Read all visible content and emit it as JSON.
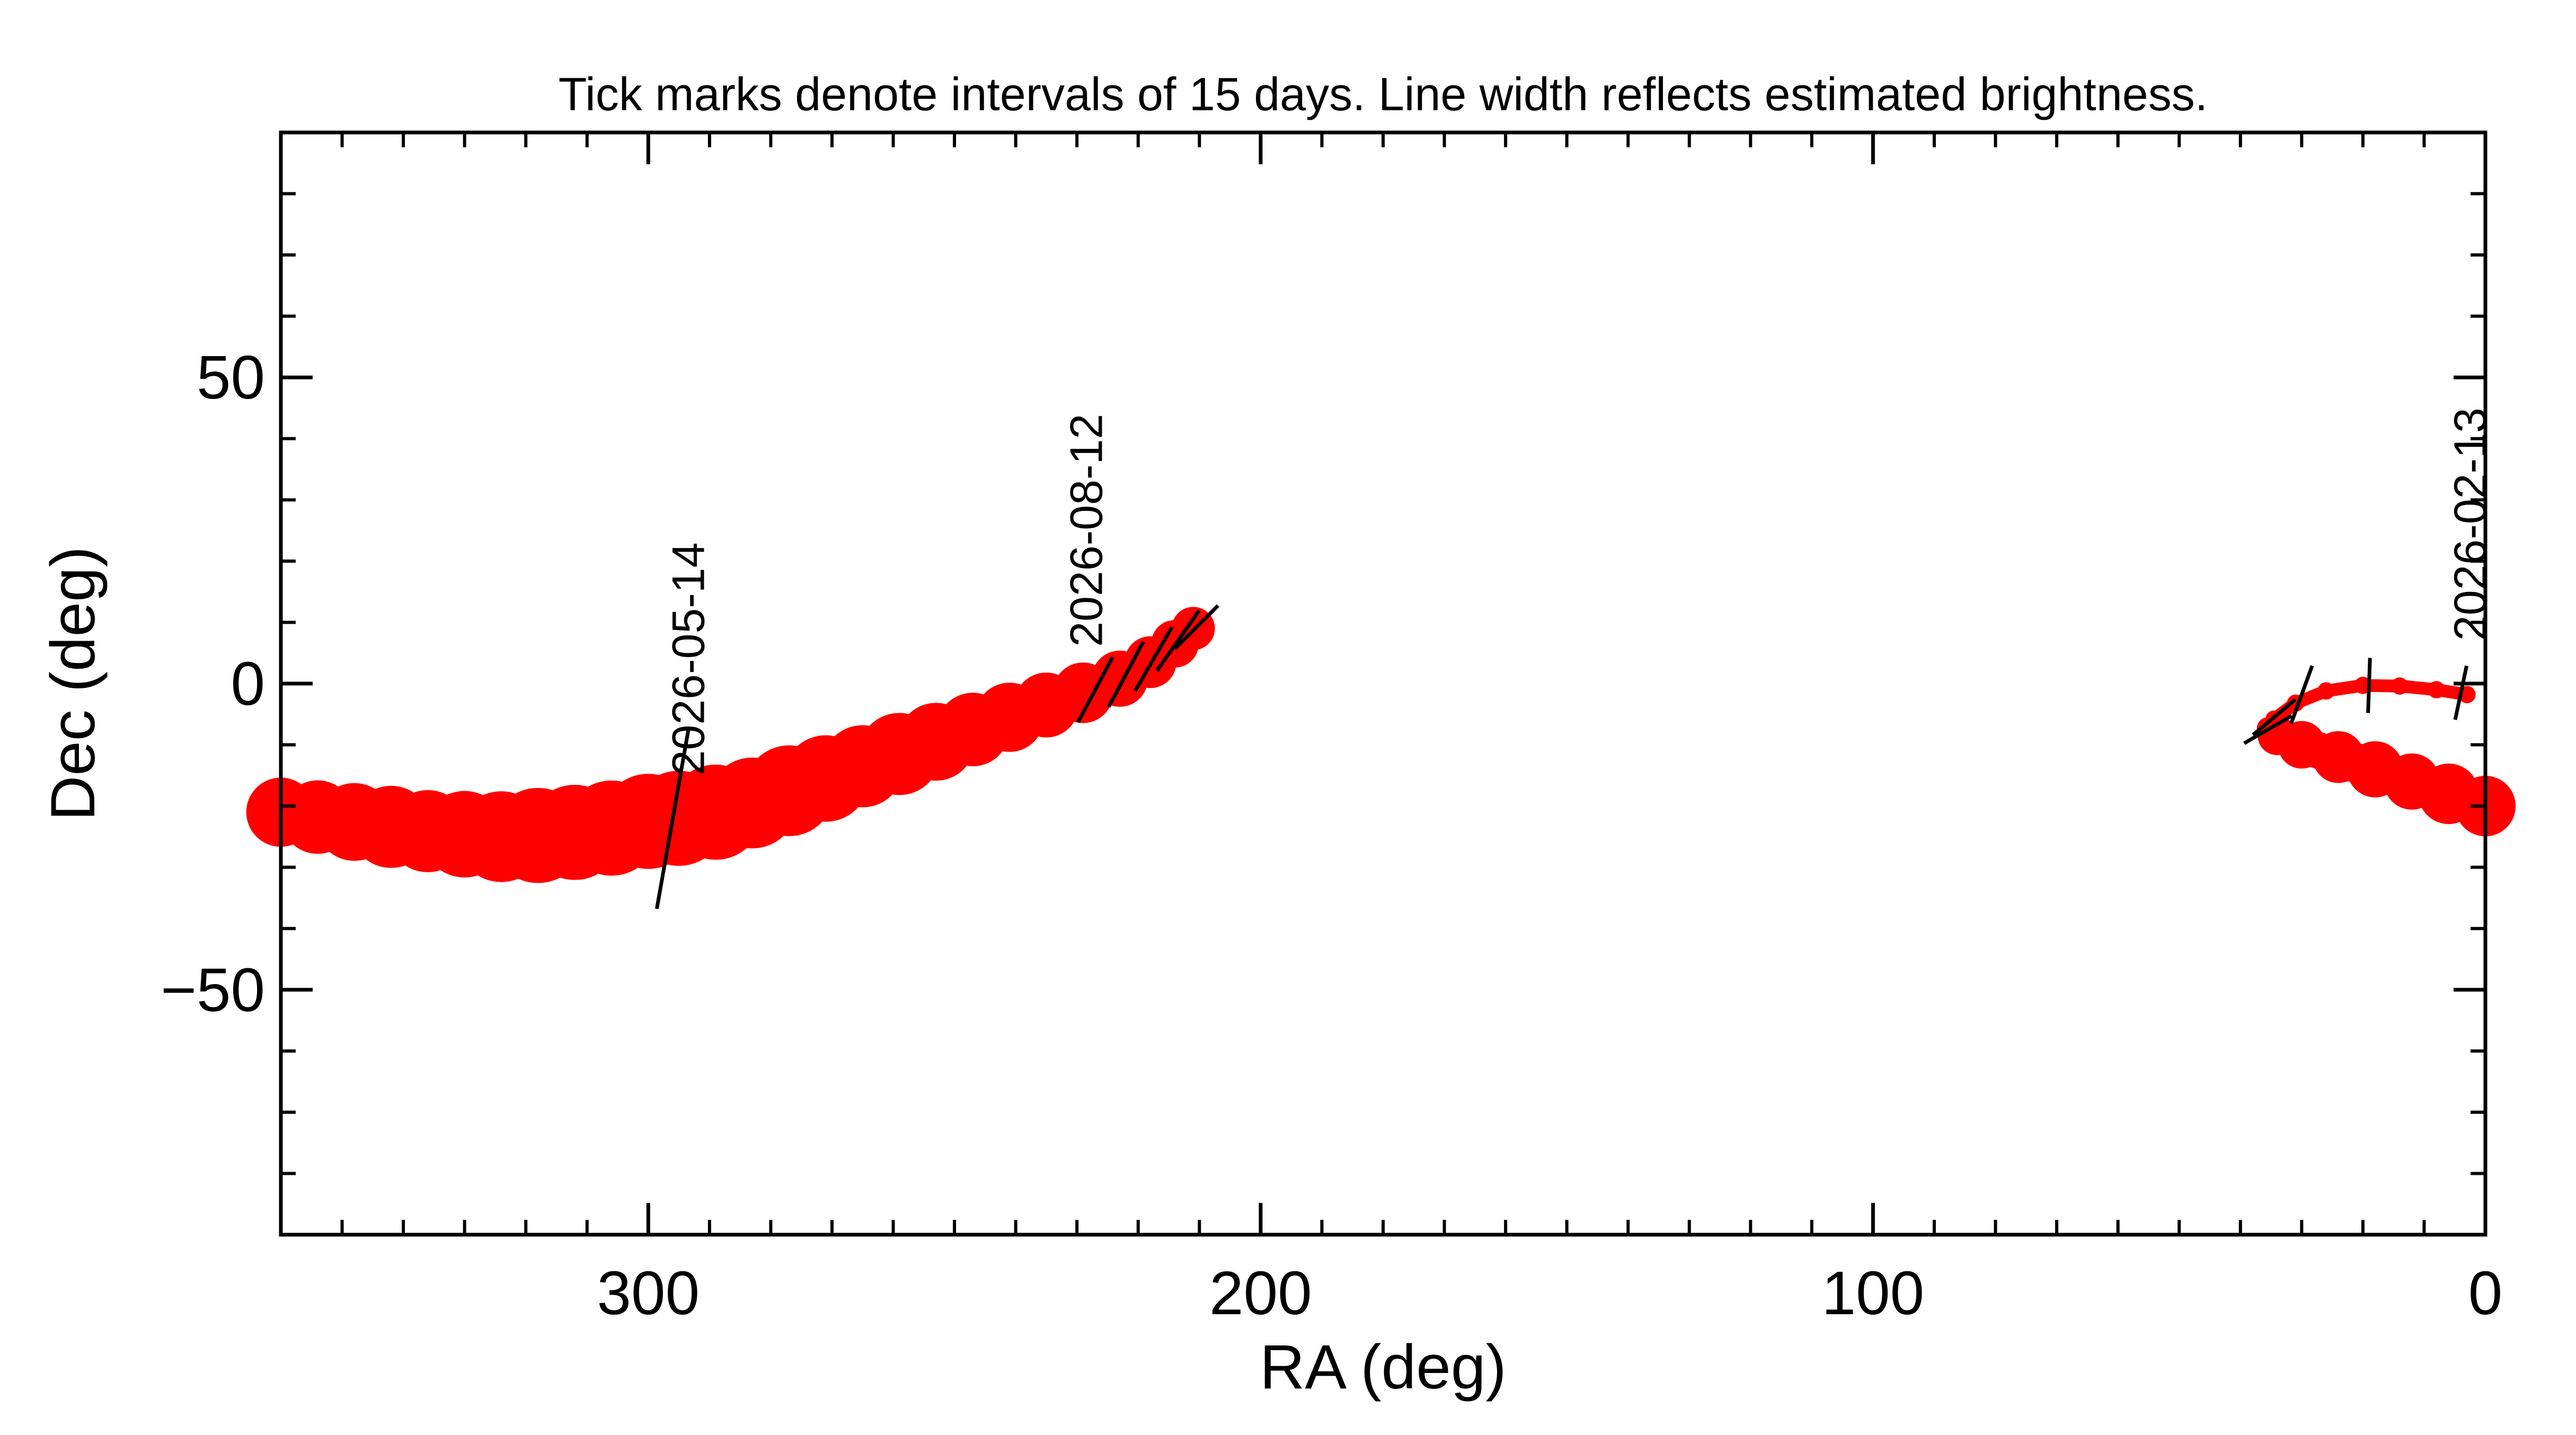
{
  "chart_data": {
    "type": "line",
    "title": "Tick marks denote intervals of 15 days.  Line width reflects estimated brightness.",
    "xlabel": "RA (deg)",
    "ylabel": "Dec (deg)",
    "xlim": [
      360,
      0
    ],
    "ylim": [
      -90,
      90
    ],
    "x_ticks": [
      300,
      200,
      100,
      0
    ],
    "y_ticks": [
      50,
      0,
      -50
    ],
    "x_minor_step": 10,
    "y_minor_step": 10,
    "grid": false,
    "line_color": "#ff0000",
    "tick_mark_color": "#000000",
    "series": [
      {
        "points": [
          {
            "ra": 0.0,
            "dec": -20.0,
            "w": 14
          },
          {
            "ra": 6.0,
            "dec": -18.0,
            "w": 14
          },
          {
            "ra": 12.0,
            "dec": -16.0,
            "w": 13
          },
          {
            "ra": 18.0,
            "dec": -14.0,
            "w": 13
          },
          {
            "ra": 24.0,
            "dec": -12.0,
            "w": 12
          },
          {
            "ra": 30.0,
            "dec": -10.0,
            "w": 11
          },
          {
            "ra": 34.0,
            "dec": -8.5,
            "w": 9
          },
          {
            "ra": 35.5,
            "dec": -7.3,
            "w": 5
          },
          {
            "ra": 34.5,
            "dec": -5.8,
            "w": 4
          },
          {
            "ra": 31.0,
            "dec": -3.2,
            "w": 4
          },
          {
            "ra": 26.0,
            "dec": -1.2,
            "w": 4
          },
          {
            "ra": 20.0,
            "dec": -0.3,
            "w": 4
          },
          {
            "ra": 14.0,
            "dec": -0.4,
            "w": 4
          },
          {
            "ra": 8.0,
            "dec": -1.0,
            "w": 4
          },
          {
            "ra": 3.0,
            "dec": -1.8,
            "w": 4
          }
        ]
      },
      {
        "points": [
          {
            "ra": 360.0,
            "dec": -21.0,
            "w": 16
          },
          {
            "ra": 354.0,
            "dec": -21.8,
            "w": 17
          },
          {
            "ra": 348.0,
            "dec": -22.6,
            "w": 18
          },
          {
            "ra": 342.0,
            "dec": -23.4,
            "w": 19
          },
          {
            "ra": 336.0,
            "dec": -24.1,
            "w": 19
          },
          {
            "ra": 330.0,
            "dec": -24.6,
            "w": 20
          },
          {
            "ra": 324.0,
            "dec": -25.0,
            "w": 21
          },
          {
            "ra": 318.0,
            "dec": -24.8,
            "w": 22
          },
          {
            "ra": 312.0,
            "dec": -24.3,
            "w": 22
          },
          {
            "ra": 306.0,
            "dec": -23.6,
            "w": 22
          },
          {
            "ra": 300.0,
            "dec": -22.5,
            "w": 22
          },
          {
            "ra": 295.0,
            "dec": -22.0,
            "w": 22
          },
          {
            "ra": 289.0,
            "dec": -21.0,
            "w": 22
          },
          {
            "ra": 283.0,
            "dec": -19.5,
            "w": 21
          },
          {
            "ra": 277.0,
            "dec": -17.5,
            "w": 21
          },
          {
            "ra": 271.0,
            "dec": -15.5,
            "w": 20
          },
          {
            "ra": 265.0,
            "dec": -13.5,
            "w": 19
          },
          {
            "ra": 259.0,
            "dec": -11.5,
            "w": 19
          },
          {
            "ra": 253.0,
            "dec": -9.5,
            "w": 18
          },
          {
            "ra": 247.0,
            "dec": -7.5,
            "w": 17
          },
          {
            "ra": 241.0,
            "dec": -5.5,
            "w": 16
          },
          {
            "ra": 235.0,
            "dec": -3.5,
            "w": 15
          },
          {
            "ra": 229.0,
            "dec": -1.5,
            "w": 14
          },
          {
            "ra": 223.0,
            "dec": 0.8,
            "w": 13
          },
          {
            "ra": 218.0,
            "dec": 3.5,
            "w": 12
          },
          {
            "ra": 214.0,
            "dec": 6.5,
            "w": 11
          },
          {
            "ra": 211.0,
            "dec": 9.0,
            "w": 10
          }
        ]
      }
    ],
    "interval_ticks": [
      {
        "ra": 4.0,
        "dec": -1.5,
        "angle": 78,
        "len": 4.5
      },
      {
        "ra": 19.0,
        "dec": -0.3,
        "angle": 88,
        "len": 4.5
      },
      {
        "ra": 30.0,
        "dec": -1.8,
        "angle": 70,
        "len": 5
      },
      {
        "ra": 34.5,
        "dec": -5.5,
        "angle": 40,
        "len": 4.5
      },
      {
        "ra": 35.5,
        "dec": -7.5,
        "angle": 30,
        "len": 4.5
      },
      {
        "ra": 296.0,
        "dec": -22.0,
        "angle": 80,
        "len": 15
      },
      {
        "ra": 227.0,
        "dec": -1.0,
        "angle": 62,
        "len": 6
      },
      {
        "ra": 222.0,
        "dec": 1.5,
        "angle": 62,
        "len": 6
      },
      {
        "ra": 217.5,
        "dec": 4.0,
        "angle": 60,
        "len": 6
      },
      {
        "ra": 213.5,
        "dec": 7.0,
        "angle": 55,
        "len": 6
      },
      {
        "ra": 210.5,
        "dec": 9.2,
        "angle": 45,
        "len": 5
      }
    ],
    "annotations": [
      {
        "text": "2026-05-14",
        "ra": 293.5,
        "dec": -15
      },
      {
        "text": "2026-08-12",
        "ra": 228.5,
        "dec": 6
      },
      {
        "text": "2026-02-13",
        "ra": 2.5,
        "dec": 7
      }
    ]
  }
}
